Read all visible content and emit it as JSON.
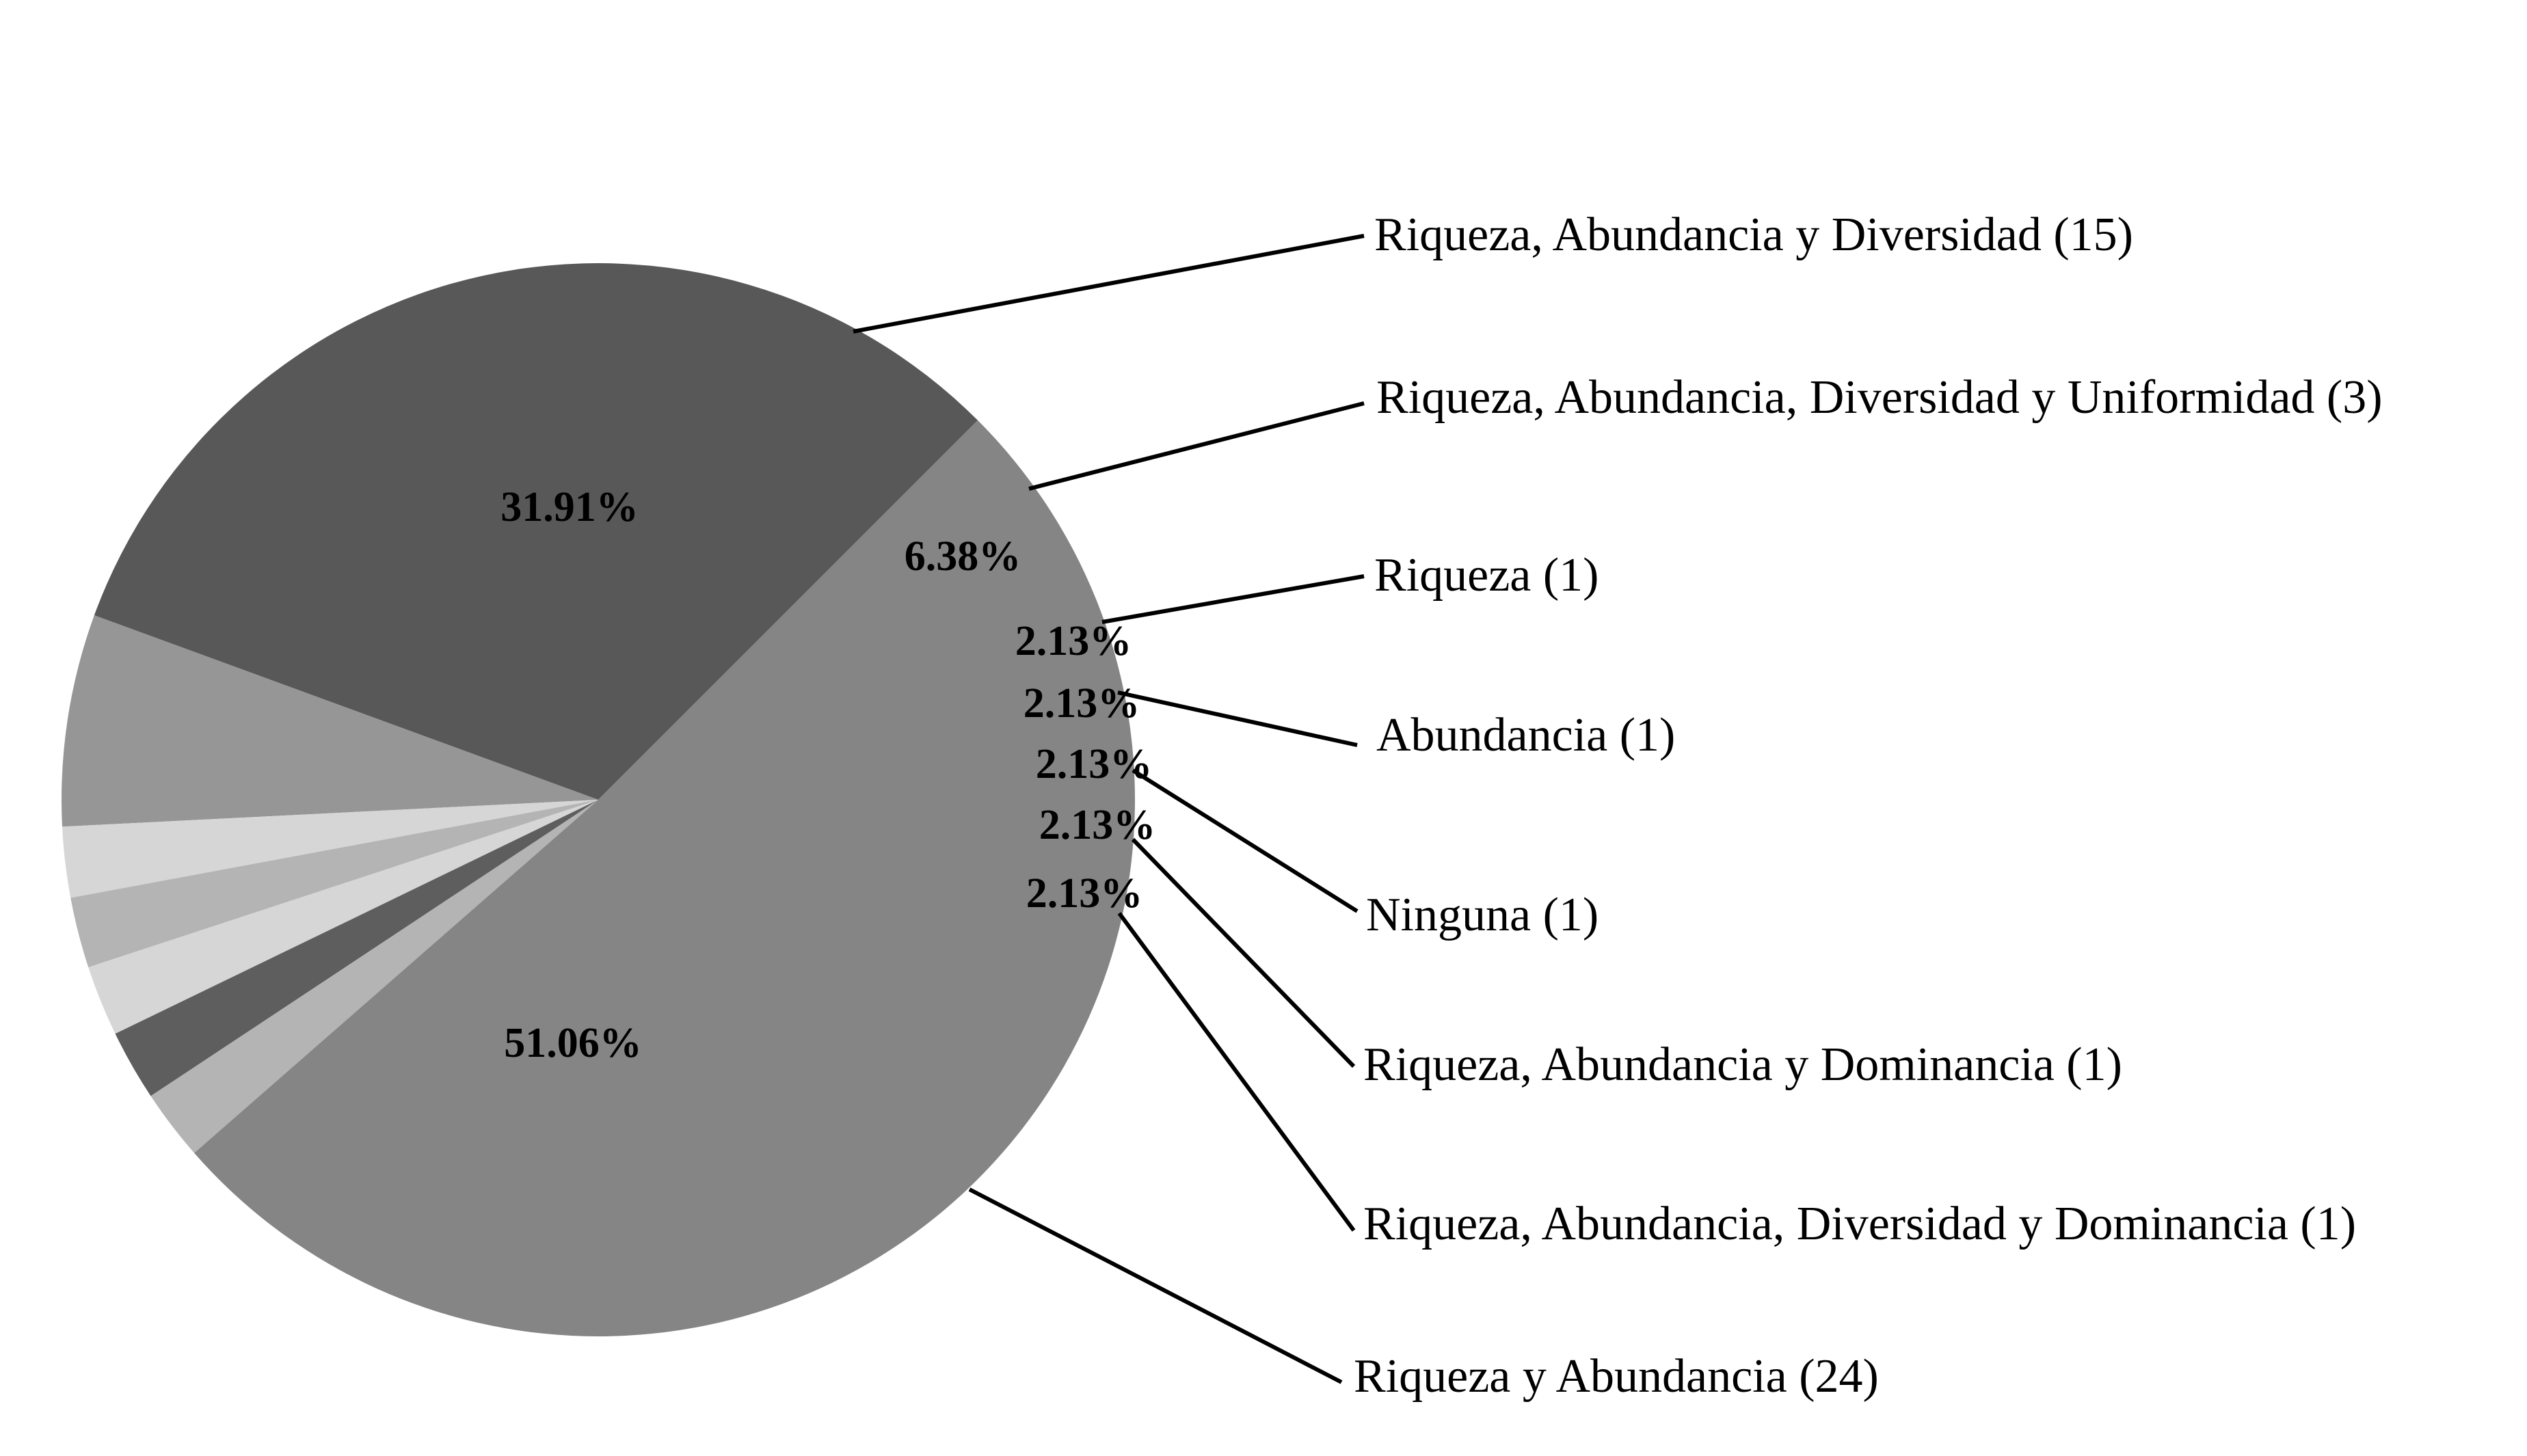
{
  "chart_data": {
    "type": "pie",
    "title": "",
    "slices": [
      {
        "label": "Riqueza, Abundancia y Diversidad (15)",
        "count": 15,
        "percent_label": "31.91%",
        "color": "#585858"
      },
      {
        "label": "Riqueza, Abundancia, Diversidad y Uniformidad (3)",
        "count": 3,
        "percent_label": "6.38%",
        "color": "#969696"
      },
      {
        "label": "Riqueza (1)",
        "count": 1,
        "percent_label": "2.13%",
        "color": "#d6d6d6"
      },
      {
        "label": "Abundancia (1)",
        "count": 1,
        "percent_label": "2.13%",
        "color": "#b4b4b4"
      },
      {
        "label": "Ninguna (1)",
        "count": 1,
        "percent_label": "2.13%",
        "color": "#d6d6d6"
      },
      {
        "label": "Riqueza, Abundancia y Dominancia (1)",
        "count": 1,
        "percent_label": "2.13%",
        "color": "#5e5e5e"
      },
      {
        "label": "Riqueza, Abundancia, Diversidad y Dominancia (1)",
        "count": 1,
        "percent_label": "2.13%",
        "color": "#b4b4b4"
      },
      {
        "label": "Riqueza y Abundancia (24)",
        "count": 24,
        "percent_label": "51.06%",
        "color": "#858585"
      }
    ]
  }
}
